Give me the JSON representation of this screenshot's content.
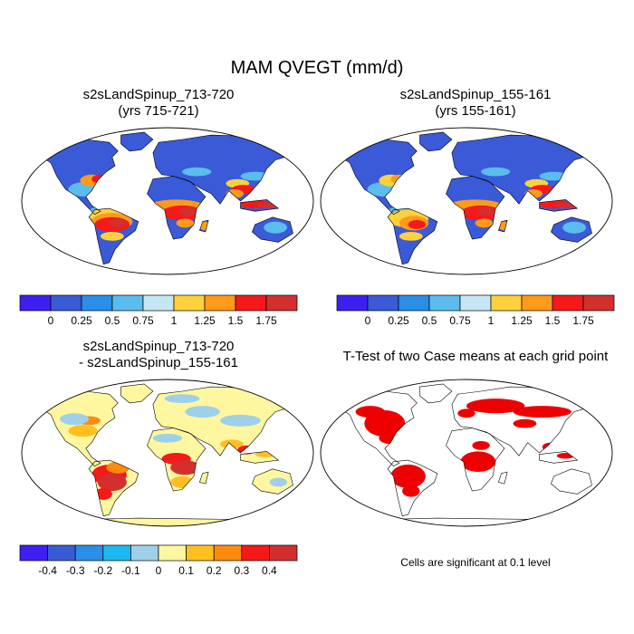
{
  "figure": {
    "title": "MAM QVEGT (mm/d)",
    "significance_note": "Cells are significant at 0.1 level"
  },
  "chart_data": [
    {
      "type": "heatmap",
      "projection": "robinson world map",
      "title_line1": "s2sLandSpinup_713-720",
      "title_line2": "(yrs 715-721)",
      "variable": "QVEGT",
      "units": "mm/d",
      "season": "MAM",
      "colorbar": {
        "levels": [
          "0",
          "0.25",
          "0.5",
          "0.75",
          "1",
          "1.25",
          "1.5",
          "1.75"
        ],
        "colors": [
          "#3d1ff2",
          "#3a5ad8",
          "#2b8ee8",
          "#5bbcee",
          "#c6e6f5",
          "#ffd13a",
          "#ff9a1a",
          "#f5191a",
          "#d32f2f"
        ]
      }
    },
    {
      "type": "heatmap",
      "projection": "robinson world map",
      "title_line1": "s2sLandSpinup_155-161",
      "title_line2": "(yrs 155-161)",
      "variable": "QVEGT",
      "units": "mm/d",
      "season": "MAM",
      "colorbar": {
        "levels": [
          "0",
          "0.25",
          "0.5",
          "0.75",
          "1",
          "1.25",
          "1.5",
          "1.75"
        ],
        "colors": [
          "#3d1ff2",
          "#3a5ad8",
          "#2b8ee8",
          "#5bbcee",
          "#c6e6f5",
          "#ffd13a",
          "#ff9a1a",
          "#f5191a",
          "#d32f2f"
        ]
      }
    },
    {
      "type": "heatmap",
      "projection": "robinson world map",
      "title_line1": "s2sLandSpinup_713-720",
      "title_line2": "- s2sLandSpinup_155-161",
      "variable": "QVEGT difference",
      "units": "mm/d",
      "colorbar": {
        "levels": [
          "-0.4",
          "-0.3",
          "-0.2",
          "-0.1",
          "0",
          "0.1",
          "0.2",
          "0.3",
          "0.4"
        ],
        "colors": [
          "#3d1ff2",
          "#3a5ad8",
          "#2b8ee8",
          "#1ab8ef",
          "#9fd0ea",
          "#fff7a0",
          "#ffbf20",
          "#ff8a10",
          "#f5191a",
          "#d32f2f"
        ]
      }
    },
    {
      "type": "heatmap",
      "projection": "robinson world map",
      "title_line1": "T-Test of two Case means at each grid point",
      "variable": "significance mask",
      "significance_level": 0.1,
      "color": "#ee0000"
    }
  ]
}
